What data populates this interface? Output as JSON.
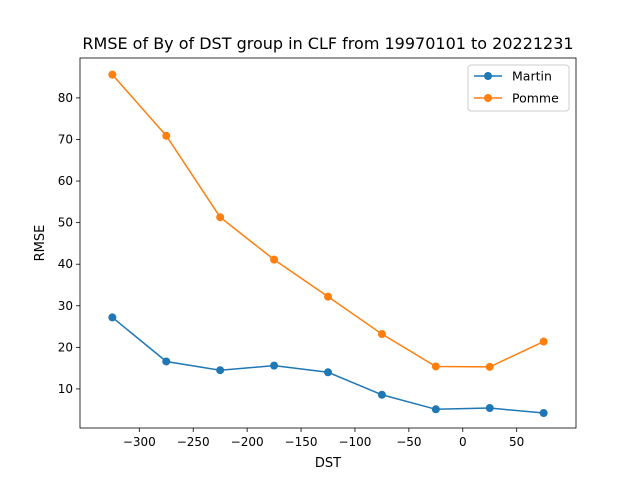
{
  "chart_data": {
    "type": "line",
    "title": "RMSE of By of DST group in CLF from 19970101 to 20221231",
    "xlabel": "DST",
    "ylabel": "RMSE",
    "x": [
      -325,
      -275,
      -225,
      -175,
      -125,
      -75,
      -25,
      25,
      75
    ],
    "xlim": [
      -355,
      105
    ],
    "ylim": [
      0.6,
      89.6
    ],
    "xticks": [
      -300,
      -250,
      -200,
      -150,
      -100,
      -50,
      0,
      50
    ],
    "xtick_labels": [
      "−300",
      "−250",
      "−200",
      "−150",
      "−100",
      "−50",
      "0",
      "50"
    ],
    "yticks": [
      10,
      20,
      30,
      40,
      50,
      60,
      70,
      80
    ],
    "ytick_labels": [
      "10",
      "20",
      "30",
      "40",
      "50",
      "60",
      "70",
      "80"
    ],
    "grid": false,
    "legend_position": "top-right",
    "series": [
      {
        "name": "Martin",
        "color": "#1f77b4",
        "marker": "circle",
        "values": [
          27.2,
          16.6,
          14.5,
          15.6,
          14.0,
          8.6,
          5.1,
          5.4,
          4.2
        ]
      },
      {
        "name": "Pomme",
        "color": "#ff7f0e",
        "marker": "circle",
        "values": [
          85.6,
          70.9,
          51.3,
          41.1,
          32.2,
          23.2,
          15.4,
          15.3,
          21.4
        ]
      }
    ]
  }
}
